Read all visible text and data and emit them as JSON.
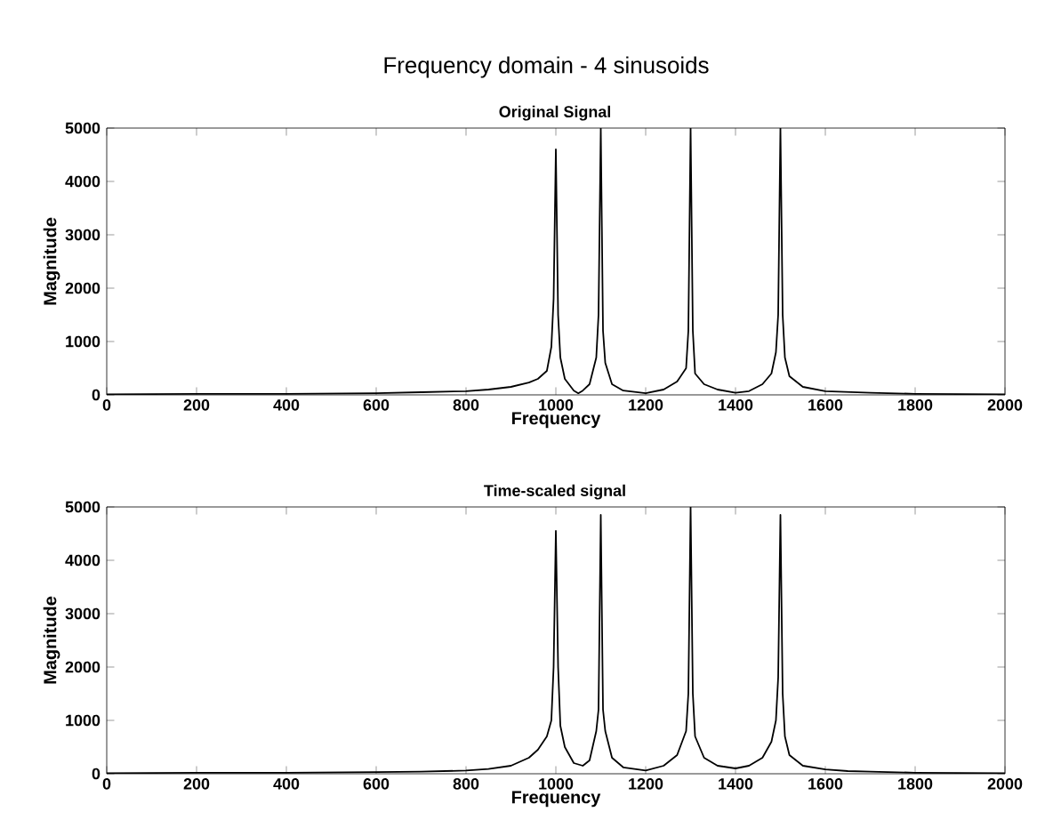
{
  "chart_data": [
    {
      "type": "line",
      "title": "Frequency domain - 4 sinusoids",
      "subtitle": "Original Signal",
      "xlabel": "Frequency",
      "ylabel": "Magnitude",
      "xlim": [
        0,
        2000
      ],
      "ylim": [
        0,
        5000
      ],
      "xticks": [
        0,
        200,
        400,
        600,
        800,
        1000,
        1200,
        1400,
        1600,
        1800,
        2000
      ],
      "yticks": [
        0,
        1000,
        2000,
        3000,
        4000,
        5000
      ],
      "grid": false,
      "series": [
        {
          "color": "#000000",
          "x": [
            0,
            200,
            400,
            600,
            700,
            800,
            850,
            900,
            940,
            960,
            980,
            990,
            995,
            1000,
            1005,
            1010,
            1020,
            1040,
            1050,
            1060,
            1075,
            1090,
            1095,
            1100,
            1105,
            1110,
            1125,
            1150,
            1200,
            1240,
            1270,
            1290,
            1295,
            1300,
            1305,
            1310,
            1330,
            1360,
            1400,
            1430,
            1460,
            1480,
            1490,
            1495,
            1500,
            1505,
            1510,
            1520,
            1550,
            1600,
            1700,
            1800,
            2000
          ],
          "values": [
            10,
            20,
            20,
            30,
            50,
            70,
            100,
            150,
            230,
            300,
            450,
            900,
            1800,
            4600,
            1500,
            700,
            300,
            80,
            30,
            80,
            200,
            700,
            1500,
            5000,
            1200,
            600,
            200,
            80,
            30,
            100,
            250,
            500,
            1200,
            5000,
            1200,
            400,
            200,
            100,
            40,
            70,
            200,
            400,
            800,
            1500,
            5000,
            1500,
            700,
            350,
            150,
            70,
            40,
            20,
            10
          ]
        }
      ]
    },
    {
      "type": "line",
      "title": "Time-scaled signal",
      "xlabel": "Frequency",
      "ylabel": "Magnitude",
      "xlim": [
        0,
        2000
      ],
      "ylim": [
        0,
        5000
      ],
      "xticks": [
        0,
        200,
        400,
        600,
        800,
        1000,
        1200,
        1400,
        1600,
        1800,
        2000
      ],
      "yticks": [
        0,
        1000,
        2000,
        3000,
        4000,
        5000
      ],
      "grid": false,
      "series": [
        {
          "color": "#000000",
          "x": [
            0,
            200,
            400,
            600,
            700,
            800,
            850,
            900,
            940,
            960,
            980,
            990,
            995,
            1000,
            1005,
            1010,
            1020,
            1040,
            1060,
            1075,
            1090,
            1095,
            1100,
            1105,
            1110,
            1125,
            1150,
            1200,
            1240,
            1270,
            1290,
            1295,
            1300,
            1305,
            1310,
            1330,
            1360,
            1400,
            1430,
            1460,
            1480,
            1490,
            1495,
            1500,
            1505,
            1510,
            1520,
            1550,
            1600,
            1650,
            1700,
            1800,
            2000
          ],
          "values": [
            10,
            20,
            20,
            30,
            40,
            60,
            90,
            150,
            300,
            450,
            700,
            1000,
            2000,
            4550,
            2000,
            900,
            500,
            200,
            150,
            250,
            800,
            1200,
            4850,
            1200,
            800,
            300,
            120,
            60,
            150,
            350,
            800,
            1500,
            5000,
            1500,
            700,
            300,
            150,
            100,
            150,
            300,
            600,
            1000,
            1800,
            4850,
            1500,
            700,
            350,
            150,
            80,
            50,
            40,
            20,
            10
          ]
        }
      ]
    }
  ]
}
